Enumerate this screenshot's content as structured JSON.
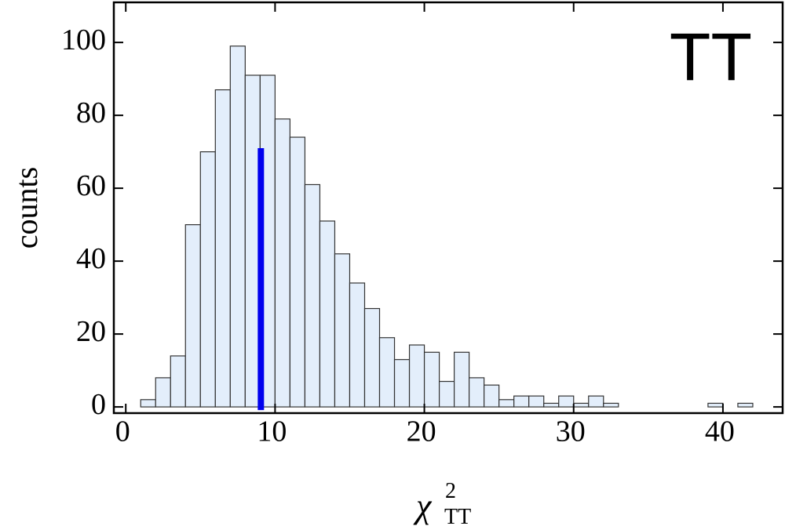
{
  "chart_data": {
    "type": "histogram",
    "ylabel": "counts",
    "xlabel": {
      "base": "χ",
      "sup": "2",
      "sub": "TT"
    },
    "annotation": "TT",
    "bins": [
      1,
      2,
      3,
      4,
      5,
      6,
      7,
      8,
      9,
      10,
      11,
      12,
      13,
      14,
      15,
      16,
      17,
      18,
      19,
      20,
      21,
      22,
      23,
      24,
      25,
      26,
      27,
      28,
      29,
      30,
      31,
      32,
      33,
      34,
      35,
      36,
      37,
      38,
      39,
      40,
      41,
      42
    ],
    "values": [
      2,
      8,
      14,
      50,
      70,
      87,
      99,
      91,
      91,
      79,
      74,
      61,
      51,
      42,
      34,
      27,
      19,
      13,
      17,
      15,
      7,
      15,
      8,
      6,
      2,
      3,
      3,
      1,
      3,
      1,
      3,
      1,
      0,
      0,
      0,
      0,
      0,
      0,
      1,
      0,
      1
    ],
    "color": "#e3eefb",
    "marker": {
      "x": 9.05,
      "top": 71,
      "color": "#0000ee"
    },
    "xlim": [
      -0.8,
      44
    ],
    "ylim": [
      -1.7,
      111
    ],
    "xticks": [
      0,
      10,
      20,
      30,
      40
    ],
    "yticks": [
      0,
      20,
      40,
      60,
      80,
      100
    ]
  }
}
